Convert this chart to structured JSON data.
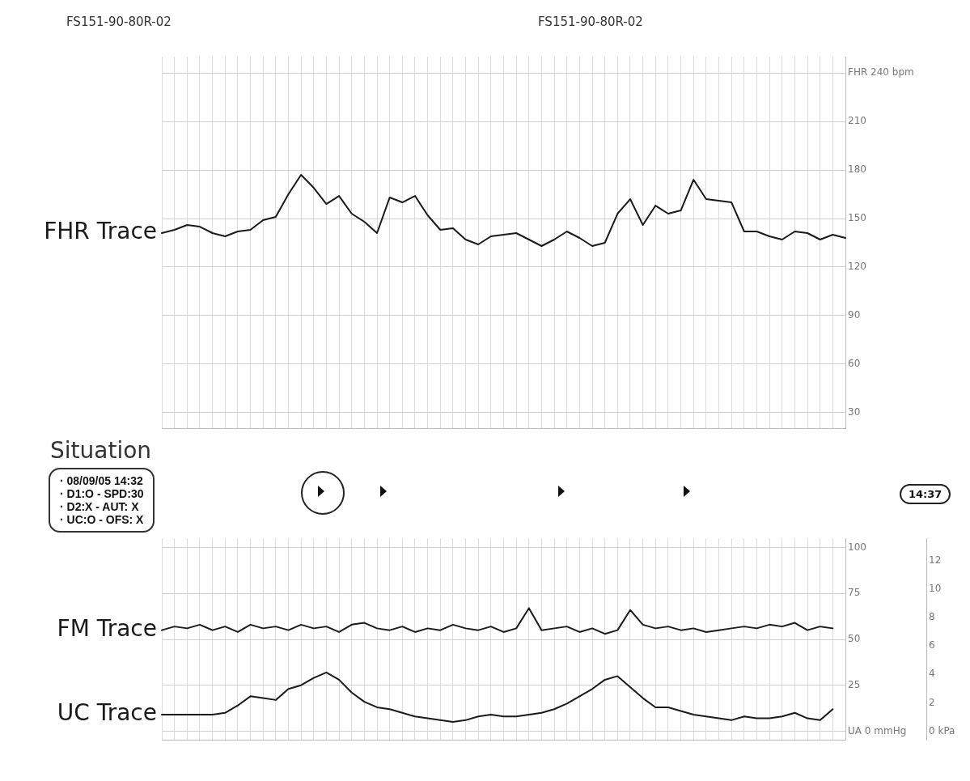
{
  "chart_data": [
    {
      "type": "line",
      "categories": [
        null,
        null,
        null,
        null,
        null,
        null,
        null,
        null,
        null,
        null,
        null,
        null,
        null,
        null,
        null,
        null,
        null,
        null,
        null,
        null,
        null,
        null,
        null,
        null,
        null,
        null,
        null,
        null,
        null,
        null,
        null,
        null,
        null,
        null,
        null,
        null,
        null,
        null,
        null,
        null,
        null,
        null,
        null,
        null,
        null,
        null,
        null,
        null,
        null,
        null,
        null,
        null,
        null,
        null,
        null
      ],
      "series": [
        {
          "name": "FHR Trace",
          "color": "#1a1a1a",
          "values": [
            141,
            143,
            146,
            145,
            141,
            139,
            142,
            143,
            149,
            151,
            165,
            177,
            169,
            159,
            164,
            153,
            148,
            141,
            163,
            160,
            164,
            152,
            143,
            144,
            137,
            134,
            139,
            140,
            141,
            137,
            133,
            137,
            142,
            138,
            133,
            135,
            153,
            162,
            146,
            158,
            153,
            155,
            174,
            162,
            161,
            160,
            142,
            142,
            139,
            137,
            142,
            141,
            137,
            140,
            138
          ]
        }
      ],
      "ylim": [
        20,
        250
      ],
      "yticks": [
        30,
        60,
        90,
        120,
        150,
        180,
        210,
        {
          "value": 240,
          "label": "FHR 240 bpm"
        }
      ],
      "grid": true,
      "legend": false,
      "marker": "none",
      "line_style": "solid",
      "tick_labels": "y",
      "annotations": [
        "FS151-90-80R-02",
        "FS151-90-80R-02",
        "Situation",
        "· 08/09/05 14:32",
        "· D1:O - SPD:30",
        "· D2:X - AUT: X",
        "· UC:O - OFS: X"
      ]
    },
    {
      "type": "line",
      "categories": [
        null,
        null,
        null,
        null,
        null,
        null,
        null,
        null,
        null,
        null,
        null,
        null,
        null,
        null,
        null,
        null,
        null,
        null,
        null,
        null,
        null,
        null,
        null,
        null,
        null,
        null,
        null,
        null,
        null,
        null,
        null,
        null,
        null,
        null,
        null,
        null,
        null,
        null,
        null,
        null,
        null,
        null,
        null,
        null,
        null,
        null,
        null,
        null,
        null,
        null,
        null,
        null,
        null,
        null,
        null
      ],
      "series": [
        {
          "name": "FM Trace",
          "color": "#1a1a1a",
          "values": [
            55,
            57,
            56,
            58,
            55,
            57,
            54,
            58,
            56,
            57,
            55,
            58,
            56,
            57,
            54,
            58,
            59,
            56,
            55,
            57,
            54,
            56,
            55,
            58,
            56,
            55,
            57,
            54,
            56,
            67,
            55,
            56,
            57,
            54,
            56,
            53,
            55,
            66,
            58,
            56,
            57,
            55,
            56,
            54,
            55,
            56,
            57,
            56,
            58,
            57,
            59,
            55,
            57,
            56,
            null
          ]
        },
        {
          "name": "UC Trace",
          "color": "#1a1a1a",
          "values": [
            9,
            9,
            9,
            9,
            9,
            10,
            14,
            19,
            18,
            17,
            23,
            25,
            29,
            32,
            28,
            21,
            16,
            13,
            12,
            10,
            8,
            7,
            6,
            5,
            6,
            8,
            9,
            8,
            8,
            9,
            10,
            12,
            15,
            19,
            23,
            28,
            30,
            24,
            18,
            13,
            13,
            11,
            9,
            8,
            7,
            6,
            8,
            7,
            7,
            8,
            10,
            7,
            6,
            12,
            null
          ]
        }
      ],
      "ylim": [
        -5,
        105
      ],
      "yticks": [
        {
          "value": 0,
          "label": "UA 0 mmHg"
        },
        25,
        50,
        75,
        100
      ],
      "y2lim": [
        -0.65,
        13.6
      ],
      "y2ticks": [
        {
          "value": 0,
          "label": "0 kPa"
        },
        2,
        4,
        6,
        8,
        10,
        12
      ],
      "grid": true,
      "legend": false,
      "marker": "none",
      "line_style": "solid",
      "tick_labels": "y",
      "annotations": [
        "14:37"
      ]
    }
  ]
}
